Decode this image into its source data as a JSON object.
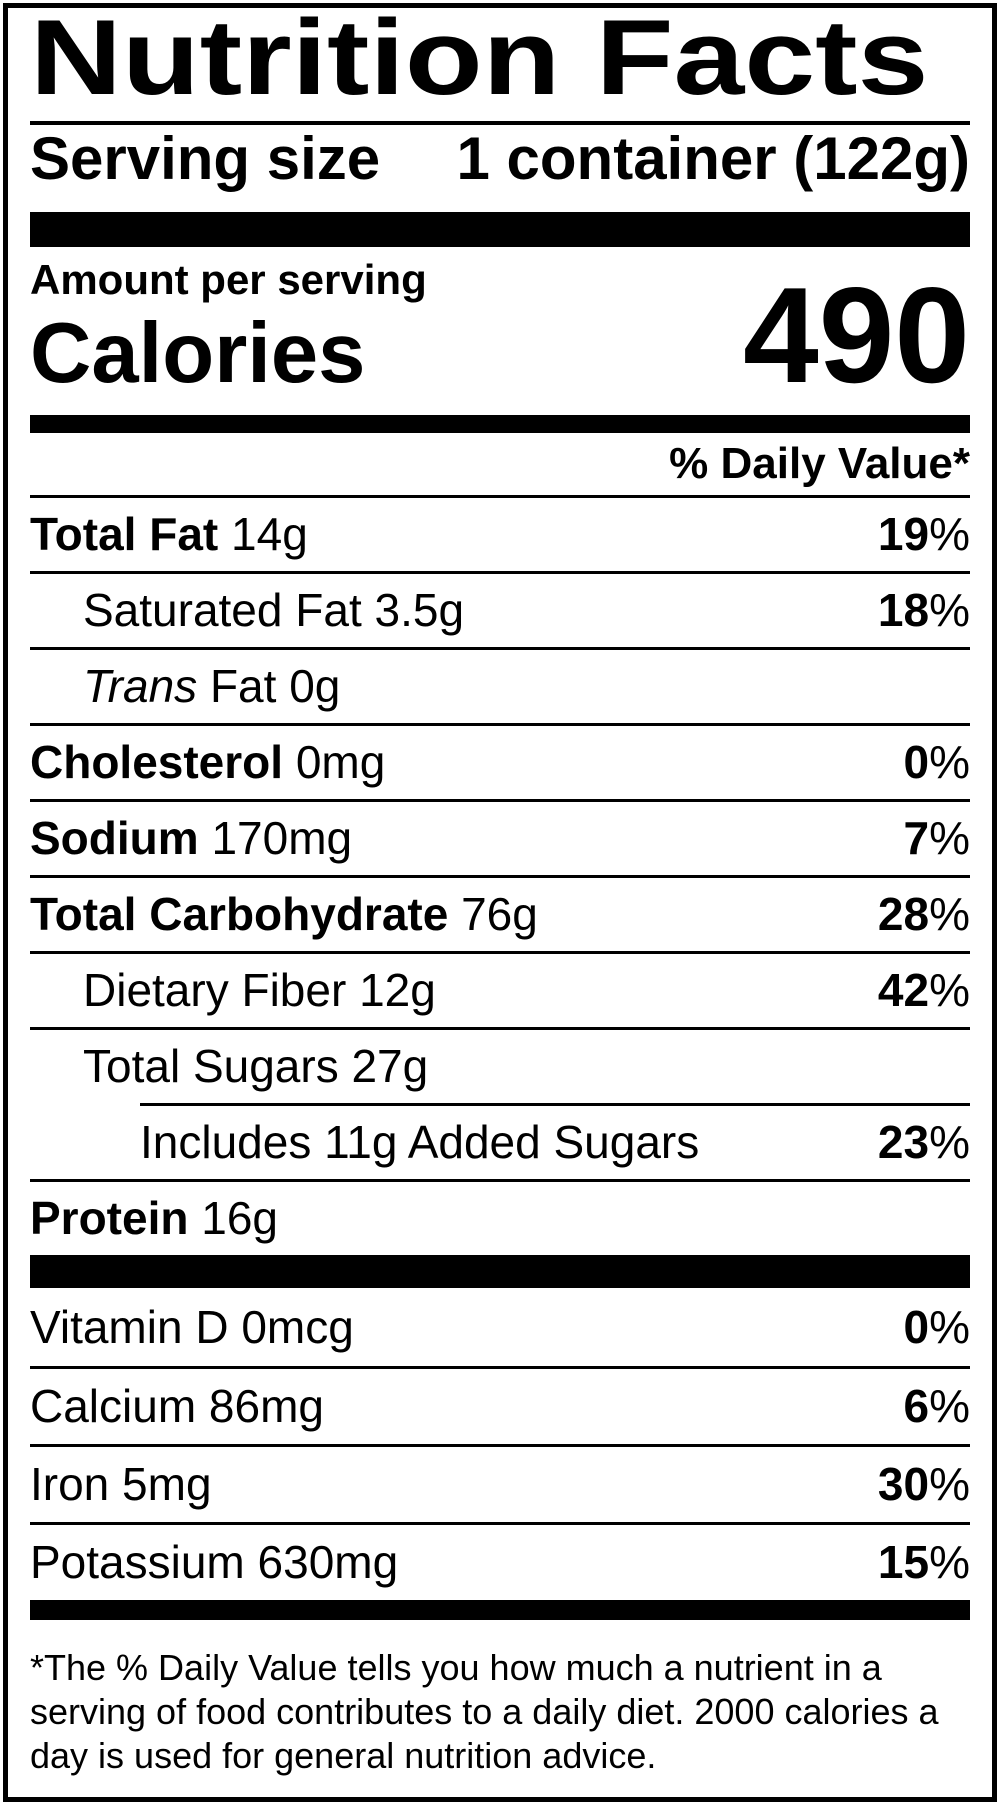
{
  "label": {
    "title": "Nutrition Facts",
    "serving": {
      "label": "Serving size",
      "value": "1 container (122g)"
    },
    "calories": {
      "heading": "Amount per serving",
      "word": "Calories",
      "value": "490"
    },
    "dv_header": "% Daily Value*",
    "rows": [
      {
        "bold": "Total Fat",
        "italic": "",
        "text": " 14g",
        "dv": "19",
        "pct": "%"
      },
      {
        "bold": "",
        "italic": "",
        "text": "Saturated Fat 3.5g",
        "dv": "18",
        "pct": "%"
      },
      {
        "bold": "",
        "italic": "Trans",
        "text": " Fat 0g",
        "dv": "",
        "pct": ""
      },
      {
        "bold": "Cholesterol",
        "italic": "",
        "text": " 0mg",
        "dv": "0",
        "pct": "%"
      },
      {
        "bold": "Sodium",
        "italic": "",
        "text": " 170mg",
        "dv": "7",
        "pct": "%"
      },
      {
        "bold": "Total Carbohydrate",
        "italic": "",
        "text": " 76g",
        "dv": "28",
        "pct": "%"
      },
      {
        "bold": "",
        "italic": "",
        "text": "Dietary Fiber 12g",
        "dv": "42",
        "pct": "%"
      },
      {
        "bold": "",
        "italic": "",
        "text": "Total Sugars 27g",
        "dv": "",
        "pct": ""
      },
      {
        "bold": "",
        "italic": "",
        "text": "Includes 11g Added Sugars",
        "dv": "23",
        "pct": "%"
      },
      {
        "bold": "Protein",
        "italic": "",
        "text": " 16g",
        "dv": "",
        "pct": ""
      }
    ],
    "vitamins": [
      {
        "text": "Vitamin D 0mcg",
        "dv": "0",
        "pct": "%"
      },
      {
        "text": "Calcium 86mg",
        "dv": "6",
        "pct": "%"
      },
      {
        "text": "Iron 5mg",
        "dv": "30",
        "pct": "%"
      },
      {
        "text": "Potassium 630mg",
        "dv": "15",
        "pct": "%"
      }
    ],
    "footnote": "*The % Daily Value tells you how much a nutrient in a serving of food contributes to a daily diet. 2000 calories a day is used for general nutrition advice."
  },
  "colors": {
    "ink": "#000000",
    "paper": "#ffffff"
  }
}
